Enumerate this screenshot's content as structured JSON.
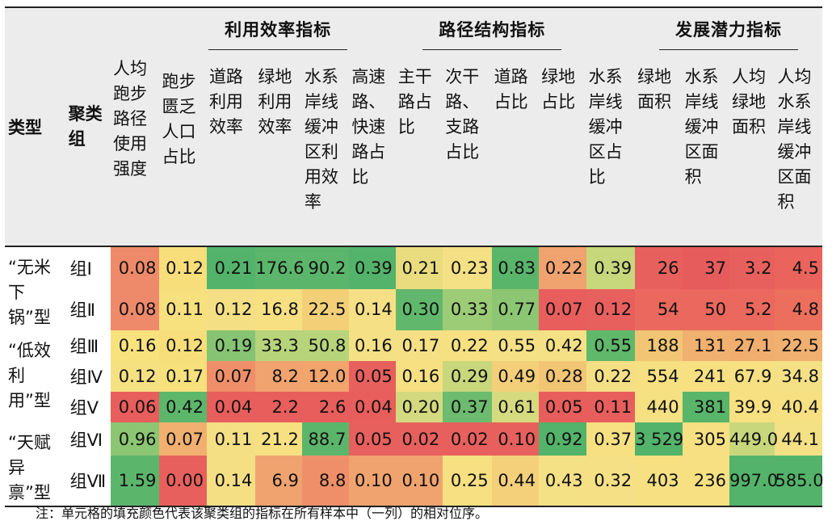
{
  "header": {
    "type_label": "类型",
    "group_label": "聚类组",
    "sections": [
      "利用效率指标",
      "路径结构指标",
      "发展潜力指标"
    ],
    "columns": [
      "人均跑步路径使用强度",
      "跑步匮乏人口占比",
      "道路利用效率",
      "绿地利用效率",
      "水系岸线缓冲区利用效率",
      "高速路、快速路占比",
      "主干路占比",
      "次干路、支路占比",
      "道路占比",
      "绿地占比",
      "水系岸线缓冲区占比",
      "绿地面积",
      "水系岸线缓冲区面积",
      "人均绿地面积",
      "人均水系岸线缓冲区面积"
    ]
  },
  "types": [
    "“无米下锅”型",
    "“低效利用”型",
    "“天赋异禀”型"
  ],
  "rows": [
    {
      "group": "组Ⅰ",
      "values": [
        "0.08",
        "0.12",
        "0.21",
        "176.6",
        "90.2",
        "0.39",
        "0.21",
        "0.23",
        "0.83",
        "0.22",
        "0.39",
        "26",
        "37",
        "3.2",
        "4.5"
      ],
      "colors": [
        "#ee8a6a",
        "#f7de7a",
        "#53b36a",
        "#5bb66c",
        "#5bb66c",
        "#53b36a",
        "#e9dc7f",
        "#f4e085",
        "#58b56a",
        "#f0a36f",
        "#c6d77c",
        "#e8605d",
        "#e65c5c",
        "#e8605d",
        "#ea635c"
      ]
    },
    {
      "group": "组Ⅱ",
      "values": [
        "0.08",
        "0.11",
        "0.12",
        "16.8",
        "22.5",
        "0.14",
        "0.30",
        "0.33",
        "0.77",
        "0.07",
        "0.12",
        "54",
        "50",
        "5.2",
        "4.8"
      ],
      "colors": [
        "#ee8a6a",
        "#f7e07e",
        "#f4df85",
        "#f6e082",
        "#f3d077",
        "#f5e085",
        "#61b86c",
        "#9ccc76",
        "#8cc673",
        "#e85e5c",
        "#e8605d",
        "#ea685d",
        "#ea685d",
        "#ea685d",
        "#ec6f5e"
      ]
    },
    {
      "group": "组Ⅲ",
      "values": [
        "0.16",
        "0.12",
        "0.19",
        "33.3",
        "50.8",
        "0.16",
        "0.17",
        "0.22",
        "0.55",
        "0.42",
        "0.55",
        "188",
        "131",
        "27.1",
        "22.5"
      ],
      "colors": [
        "#f7e27e",
        "#f7de7a",
        "#86c473",
        "#b7d47b",
        "#b7d47b",
        "#f4e085",
        "#f5e085",
        "#f6e082",
        "#f4e085",
        "#f4e085",
        "#60b86b",
        "#f2c574",
        "#f0b06f",
        "#f0ae6e",
        "#f0b06f"
      ]
    },
    {
      "group": "组Ⅳ",
      "values": [
        "0.12",
        "0.17",
        "0.07",
        "8.2",
        "12.0",
        "0.05",
        "0.16",
        "0.29",
        "0.49",
        "0.28",
        "0.22",
        "554",
        "241",
        "67.9",
        "34.8"
      ],
      "colors": [
        "#f5e082",
        "#f7e17d",
        "#ef8f69",
        "#f0a36f",
        "#f2a46d",
        "#e8605d",
        "#f6e082",
        "#c8d77c",
        "#f4cf79",
        "#f2c574",
        "#f4df85",
        "#f6e082",
        "#f6e082",
        "#f6e082",
        "#f4e085"
      ]
    },
    {
      "group": "组Ⅴ",
      "values": [
        "0.06",
        "0.42",
        "0.04",
        "2.2",
        "2.6",
        "0.04",
        "0.20",
        "0.37",
        "0.61",
        "0.05",
        "0.11",
        "440",
        "381",
        "39.9",
        "40.4"
      ],
      "colors": [
        "#e85e5c",
        "#5db76b",
        "#e85e5c",
        "#e85e5c",
        "#e85e5c",
        "#e85e5c",
        "#d2d97e",
        "#6cbb6e",
        "#d6da7e",
        "#e85e5c",
        "#e85e5c",
        "#f5e082",
        "#58b56a",
        "#f6e082",
        "#f6e082"
      ]
    },
    {
      "group": "组Ⅵ",
      "values": [
        "0.96",
        "0.07",
        "0.11",
        "21.2",
        "88.7",
        "0.05",
        "0.02",
        "0.02",
        "0.10",
        "0.92",
        "0.37",
        "3 529",
        "305",
        "449.0",
        "44.1"
      ],
      "colors": [
        "#8cc673",
        "#f1b070",
        "#f4df85",
        "#f6e082",
        "#5bb66c",
        "#e8605d",
        "#e8605d",
        "#e8605d",
        "#e8605d",
        "#53b36a",
        "#f6e082",
        "#53b36a",
        "#f6e082",
        "#c8d77c",
        "#f4e085"
      ]
    },
    {
      "group": "组Ⅶ",
      "values": [
        "1.59",
        "0.00",
        "0.14",
        "6.9",
        "8.8",
        "0.10",
        "0.10",
        "0.25",
        "0.44",
        "0.43",
        "0.32",
        "403",
        "236",
        "997.0",
        "585.0"
      ],
      "colors": [
        "#5bb66c",
        "#e8605d",
        "#f4df85",
        "#f0a36f",
        "#ef8f69",
        "#f0a36f",
        "#f0a36f",
        "#f6e082",
        "#f4d07a",
        "#f4e085",
        "#f5e085",
        "#f6e082",
        "#f6e082",
        "#53b36a",
        "#53b36a"
      ]
    }
  ],
  "note": "注：单元格的填充颜色代表该聚类组的指标在所有样本中（一列）的相对位序。"
}
